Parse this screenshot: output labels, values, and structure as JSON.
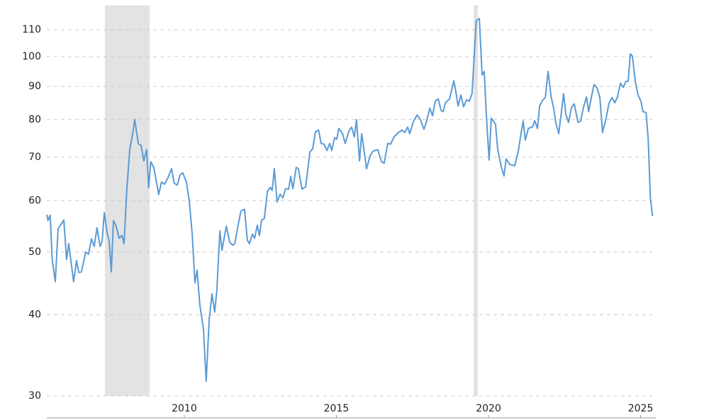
{
  "chart_data": {
    "type": "line",
    "color": "#5b9bd5",
    "log_scale": true,
    "grid": true,
    "shaded_regions": [
      [
        2007.39,
        2008.86
      ],
      [
        2019.51,
        2019.65
      ]
    ],
    "shade_color": "#e3e3e3",
    "xlim": [
      2005.48,
      2025.5
    ],
    "xticks": [
      2010,
      2015,
      2020,
      2025
    ],
    "ylim": [
      30,
      120
    ],
    "yticks": [
      30,
      40,
      50,
      60,
      70,
      80,
      90,
      100,
      110
    ],
    "x": [
      2005.48,
      2005.52,
      2005.59,
      2005.66,
      2005.76,
      2005.85,
      2006.04,
      2006.13,
      2006.2,
      2006.36,
      2006.46,
      2006.53,
      2006.62,
      2006.76,
      2006.85,
      2006.95,
      2007.04,
      2007.13,
      2007.23,
      2007.3,
      2007.37,
      2007.46,
      2007.53,
      2007.6,
      2007.67,
      2007.76,
      2007.86,
      2007.95,
      2008.02,
      2008.11,
      2008.21,
      2008.3,
      2008.37,
      2008.49,
      2008.58,
      2008.67,
      2008.76,
      2008.83,
      2008.9,
      2009.0,
      2009.16,
      2009.25,
      2009.35,
      2009.46,
      2009.58,
      2009.67,
      2009.77,
      2009.86,
      2009.95,
      2010.07,
      2010.16,
      2010.26,
      2010.35,
      2010.42,
      2010.51,
      2010.63,
      2010.72,
      2010.82,
      2010.91,
      2011.0,
      2011.07,
      2011.17,
      2011.24,
      2011.38,
      2011.49,
      2011.59,
      2011.66,
      2011.77,
      2011.86,
      2011.98,
      2012.07,
      2012.14,
      2012.24,
      2012.31,
      2012.4,
      2012.47,
      2012.54,
      2012.63,
      2012.73,
      2012.82,
      2012.89,
      2012.96,
      2013.05,
      2013.15,
      2013.24,
      2013.33,
      2013.43,
      2013.5,
      2013.57,
      2013.68,
      2013.75,
      2013.87,
      2013.99,
      2014.13,
      2014.22,
      2014.31,
      2014.41,
      2014.5,
      2014.59,
      2014.69,
      2014.78,
      2014.85,
      2014.94,
      2015.01,
      2015.08,
      2015.2,
      2015.29,
      2015.41,
      2015.5,
      2015.59,
      2015.66,
      2015.76,
      2015.83,
      2015.92,
      2015.99,
      2016.11,
      2016.2,
      2016.36,
      2016.48,
      2016.57,
      2016.69,
      2016.78,
      2016.9,
      2017.04,
      2017.16,
      2017.25,
      2017.34,
      2017.41,
      2017.53,
      2017.65,
      2017.76,
      2017.88,
      2017.97,
      2018.07,
      2018.16,
      2018.25,
      2018.35,
      2018.44,
      2018.51,
      2018.58,
      2018.72,
      2018.86,
      2018.93,
      2019.0,
      2019.09,
      2019.18,
      2019.28,
      2019.37,
      2019.46,
      2019.6,
      2019.7,
      2019.79,
      2019.86,
      2019.93,
      2020.02,
      2020.09,
      2020.23,
      2020.3,
      2020.42,
      2020.51,
      2020.58,
      2020.7,
      2020.86,
      2020.98,
      2021.05,
      2021.14,
      2021.21,
      2021.31,
      2021.45,
      2021.52,
      2021.61,
      2021.68,
      2021.77,
      2021.87,
      2021.96,
      2022.05,
      2022.15,
      2022.21,
      2022.31,
      2022.47,
      2022.54,
      2022.63,
      2022.73,
      2022.82,
      2022.94,
      2023.03,
      2023.12,
      2023.22,
      2023.29,
      2023.38,
      2023.47,
      2023.57,
      2023.66,
      2023.75,
      2023.87,
      2023.96,
      2024.06,
      2024.15,
      2024.24,
      2024.34,
      2024.43,
      2024.52,
      2024.59,
      2024.66,
      2024.73,
      2024.83,
      2024.92,
      2025.01,
      2025.08,
      2025.18,
      2025.25,
      2025.32,
      2025.39
    ],
    "values": [
      57.1,
      55.9,
      57,
      48.6,
      45,
      54.3,
      56,
      48.7,
      51.5,
      45,
      48.5,
      46.5,
      46.6,
      50,
      49.6,
      52.4,
      51,
      54.5,
      51,
      52,
      57.5,
      53.6,
      52,
      46.6,
      55.9,
      54.8,
      52.5,
      53,
      51.5,
      62.3,
      72.1,
      75.9,
      80,
      73.4,
      73,
      69.1,
      71.9,
      62.8,
      68.9,
      67.4,
      61.3,
      64.1,
      63.6,
      65,
      67.2,
      63.8,
      63.4,
      65.7,
      66.2,
      64.1,
      60.1,
      53.3,
      44.8,
      46.9,
      41.5,
      38,
      31.6,
      39.4,
      43.1,
      40.4,
      43.7,
      53.9,
      50.3,
      54.8,
      51.8,
      51.2,
      51.5,
      55,
      57.8,
      58.2,
      52.2,
      51.5,
      53.3,
      52.5,
      55,
      53,
      56,
      56.3,
      61.9,
      62.9,
      62.2,
      67.2,
      59.7,
      61.4,
      60.6,
      62.6,
      62.5,
      65.4,
      62.6,
      67.5,
      67.2,
      62.5,
      63,
      71.3,
      72.1,
      76.6,
      77.1,
      73.5,
      73.3,
      71.7,
      73.5,
      71.7,
      75,
      74.6,
      77.5,
      76.1,
      73.5,
      76.8,
      77.9,
      75.2,
      80,
      69.1,
      76.1,
      71,
      67.2,
      70.4,
      71.5,
      71.9,
      68.9,
      68.5,
      73.5,
      73.3,
      75.3,
      76.4,
      77.1,
      76.4,
      77.9,
      76.1,
      79.4,
      81.3,
      80,
      77.3,
      79.6,
      83.3,
      81.1,
      85.4,
      86.1,
      82.6,
      82.3,
      84.9,
      86.1,
      91.8,
      88.2,
      83.9,
      87.3,
      83.7,
      85.8,
      85.4,
      87.8,
      113.7,
      114.5,
      93.7,
      94.9,
      81.2,
      69.3,
      80.4,
      78.7,
      72.1,
      67.6,
      65.5,
      69.6,
      68.2,
      67.9,
      71.5,
      75.2,
      79.6,
      74.4,
      77.5,
      78,
      79.7,
      77.5,
      83.9,
      85.6,
      86.5,
      94.9,
      87.2,
      82.8,
      79.2,
      76.1,
      87.7,
      81.6,
      79.2,
      83.5,
      84.6,
      79.2,
      79.6,
      83.5,
      86.7,
      82.3,
      86.5,
      90.6,
      89.5,
      86.5,
      76.4,
      80.6,
      84.7,
      86.5,
      84.9,
      86.7,
      91,
      89.7,
      91.6,
      91.6,
      101,
      100.2,
      91.2,
      87.2,
      85.4,
      82.3,
      82,
      74.6,
      60.6,
      56.8
    ]
  }
}
